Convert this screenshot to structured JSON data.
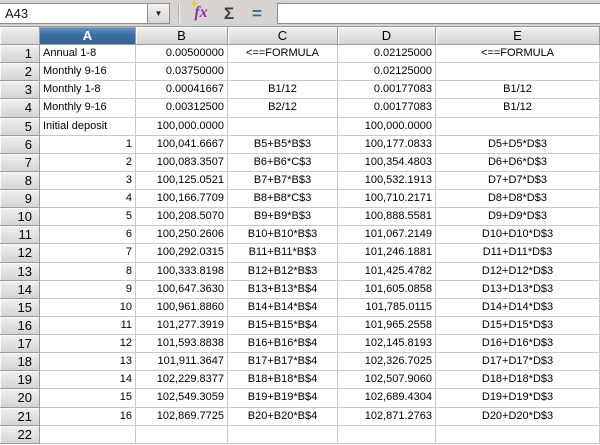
{
  "formula_bar": {
    "name_box_value": "A43",
    "formula_input_value": "",
    "dropdown_icon": "▼",
    "function_wizard_label": "fx",
    "function_wizard_spark": "✦",
    "sum_icon": "Σ",
    "equals_icon": "="
  },
  "colors": {
    "toolbar_bg": "#d7d4cf",
    "selected_column_header_bg": "#3b6ea5",
    "header_bg": "#e2e2e2",
    "grid_line": "#c9c9c9",
    "fx_purple": "#8d2fb0",
    "equals_blue": "#3465a4"
  },
  "sheet": {
    "selected_column": "A",
    "columns": [
      "A",
      "B",
      "C",
      "D",
      "E"
    ],
    "rows": [
      {
        "n": "1",
        "cells": [
          "Annual 1-8",
          "0.00500000",
          "<==FORMULA",
          "0.02125000",
          "<==FORMULA"
        ]
      },
      {
        "n": "2",
        "cells": [
          "Monthly 9-16",
          "0.03750000",
          "",
          "0.02125000",
          ""
        ]
      },
      {
        "n": "3",
        "cells": [
          "Monthly 1-8",
          "0.00041667",
          "B1/12",
          "0.00177083",
          "B1/12"
        ]
      },
      {
        "n": "4",
        "cells": [
          "Monthly 9-16",
          "0.00312500",
          "B2/12",
          "0.00177083",
          "B1/12"
        ]
      },
      {
        "n": "5",
        "cells": [
          "Initial deposit",
          "100,000.0000",
          "",
          "100,000.0000",
          ""
        ]
      },
      {
        "n": "6",
        "cells": [
          "1",
          "100,041.6667",
          "B5+B5*B$3",
          "100,177.0833",
          "D5+D5*D$3"
        ]
      },
      {
        "n": "7",
        "cells": [
          "2",
          "100,083.3507",
          "B6+B6*C$3",
          "100,354.4803",
          "D6+D6*D$3"
        ]
      },
      {
        "n": "8",
        "cells": [
          "3",
          "100,125.0521",
          "B7+B7*B$3",
          "100,532.1913",
          "D7+D7*D$3"
        ]
      },
      {
        "n": "9",
        "cells": [
          "4",
          "100,166.7709",
          "B8+B8*C$3",
          "100,710.2171",
          "D8+D8*D$3"
        ]
      },
      {
        "n": "10",
        "cells": [
          "5",
          "100,208.5070",
          "B9+B9*B$3",
          "100,888.5581",
          "D9+D9*D$3"
        ]
      },
      {
        "n": "11",
        "cells": [
          "6",
          "100,250.2606",
          "B10+B10*B$3",
          "101,067.2149",
          "D10+D10*D$3"
        ]
      },
      {
        "n": "12",
        "cells": [
          "7",
          "100,292.0315",
          "B11+B11*B$3",
          "101,246.1881",
          "D11+D11*D$3"
        ]
      },
      {
        "n": "13",
        "cells": [
          "8",
          "100,333.8198",
          "B12+B12*B$3",
          "101,425.4782",
          "D12+D12*D$3"
        ]
      },
      {
        "n": "14",
        "cells": [
          "9",
          "100,647.3630",
          "B13+B13*B$4",
          "101,605.0858",
          "D13+D13*D$3"
        ]
      },
      {
        "n": "15",
        "cells": [
          "10",
          "100,961.8860",
          "B14+B14*B$4",
          "101,785.0115",
          "D14+D14*D$3"
        ]
      },
      {
        "n": "16",
        "cells": [
          "11",
          "101,277.3919",
          "B15+B15*B$4",
          "101,965.2558",
          "D15+D15*D$3"
        ]
      },
      {
        "n": "17",
        "cells": [
          "12",
          "101,593.8838",
          "B16+B16*B$4",
          "102,145.8193",
          "D16+D16*D$3"
        ]
      },
      {
        "n": "18",
        "cells": [
          "13",
          "101,911.3647",
          "B17+B17*B$4",
          "102,326.7025",
          "D17+D17*D$3"
        ]
      },
      {
        "n": "19",
        "cells": [
          "14",
          "102,229.8377",
          "B18+B18*B$4",
          "102,507.9060",
          "D18+D18*D$3"
        ]
      },
      {
        "n": "20",
        "cells": [
          "15",
          "102,549.3059",
          "B19+B19*B$4",
          "102,689.4304",
          "D19+D19*D$3"
        ]
      },
      {
        "n": "21",
        "cells": [
          "16",
          "102,869.7725",
          "B20+B20*B$4",
          "102,871.2763",
          "D20+D20*D$3"
        ]
      },
      {
        "n": "22",
        "cells": [
          "",
          "",
          "",
          "",
          ""
        ]
      }
    ]
  }
}
